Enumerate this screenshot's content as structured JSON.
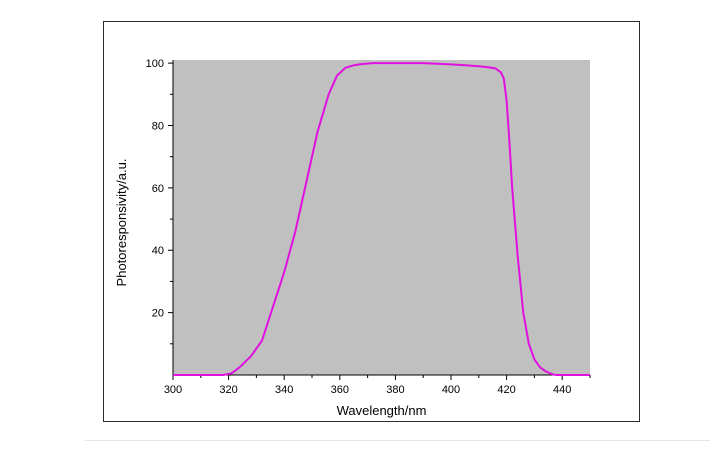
{
  "chart_data": {
    "type": "line",
    "title": "",
    "xlabel": "Wavelength/nm",
    "ylabel": "Photoresponsivity/a.u.",
    "xlim": [
      300,
      450
    ],
    "ylim": [
      0,
      101
    ],
    "xticks": [
      300,
      320,
      340,
      360,
      380,
      400,
      420,
      440
    ],
    "yticks": [
      20,
      40,
      60,
      80,
      100
    ],
    "plot_background": "#c0c0c0",
    "line_color": "#e011e0",
    "grid": false,
    "series": [
      {
        "x": [
          300,
          310,
          318,
          321,
          324,
          328,
          332,
          336,
          340,
          344,
          348,
          352,
          356,
          359,
          362,
          365,
          368,
          372,
          380,
          390,
          400,
          405,
          410,
          414,
          416,
          418,
          419,
          420,
          421,
          422,
          424,
          426,
          428,
          430,
          432,
          434,
          436,
          437,
          438,
          450
        ],
        "values": [
          0,
          0,
          0,
          0.5,
          2.5,
          6,
          11,
          22,
          33,
          46,
          62,
          78,
          90,
          96,
          98.5,
          99.3,
          99.7,
          100,
          100,
          100,
          99.6,
          99.3,
          99,
          98.6,
          98.3,
          97,
          95,
          88,
          75,
          60,
          38,
          20,
          10,
          5,
          2.5,
          1.2,
          0.4,
          0.1,
          0,
          0
        ]
      }
    ]
  }
}
